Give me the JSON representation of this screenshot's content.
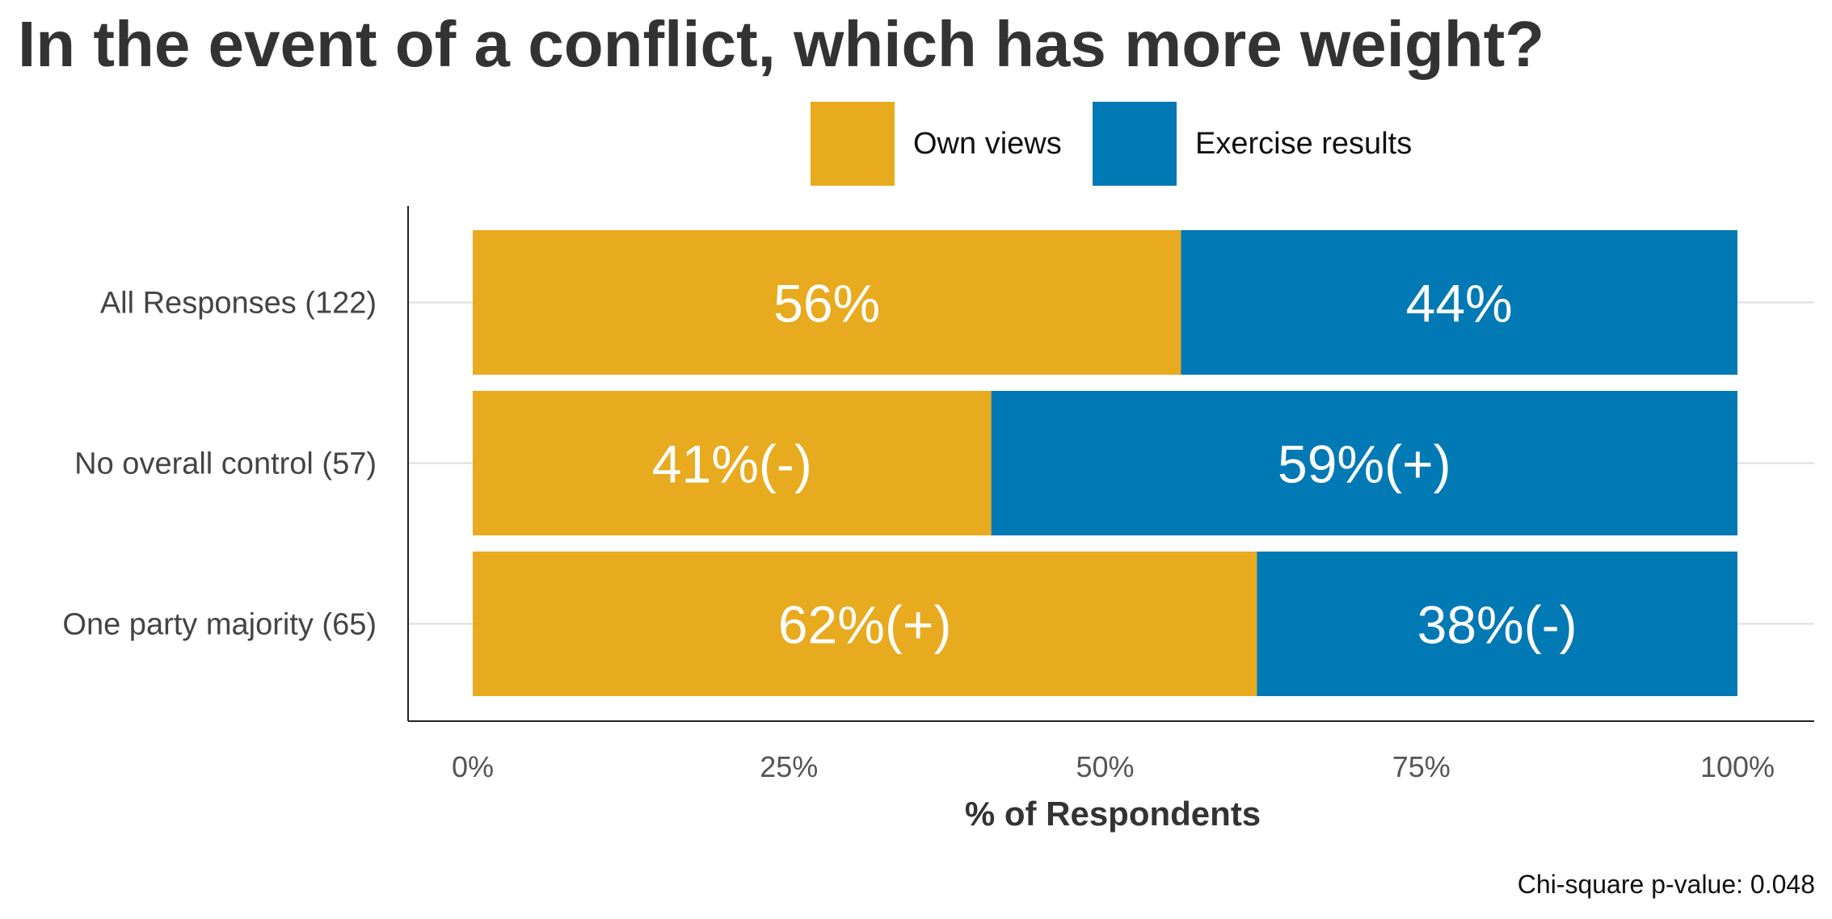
{
  "chart_data": {
    "type": "bar",
    "orientation": "horizontal",
    "stacked": true,
    "title": "In the event of a conflict, which has more weight?",
    "xlabel": "% of Respondents",
    "ylabel": "",
    "xlim": [
      0,
      100
    ],
    "x_ticks": [
      "0%",
      "25%",
      "50%",
      "75%",
      "100%"
    ],
    "x_tick_values": [
      0,
      25,
      50,
      75,
      100
    ],
    "categories": [
      "All Responses (122)",
      "No overall control (57)",
      "One party majority (65)"
    ],
    "series": [
      {
        "name": "Own views",
        "color": "#E8AA1E",
        "values": [
          56,
          41,
          62
        ],
        "labels": [
          "56%",
          "41%(-)",
          "62%(+)"
        ]
      },
      {
        "name": "Exercise results",
        "color": "#0079B4",
        "values": [
          44,
          59,
          38
        ],
        "labels": [
          "44%",
          "59%(+)",
          "38%(-)"
        ]
      }
    ],
    "legend_position": "top-center",
    "grid": true,
    "annotation": "Chi-square p-value: 0.048"
  }
}
